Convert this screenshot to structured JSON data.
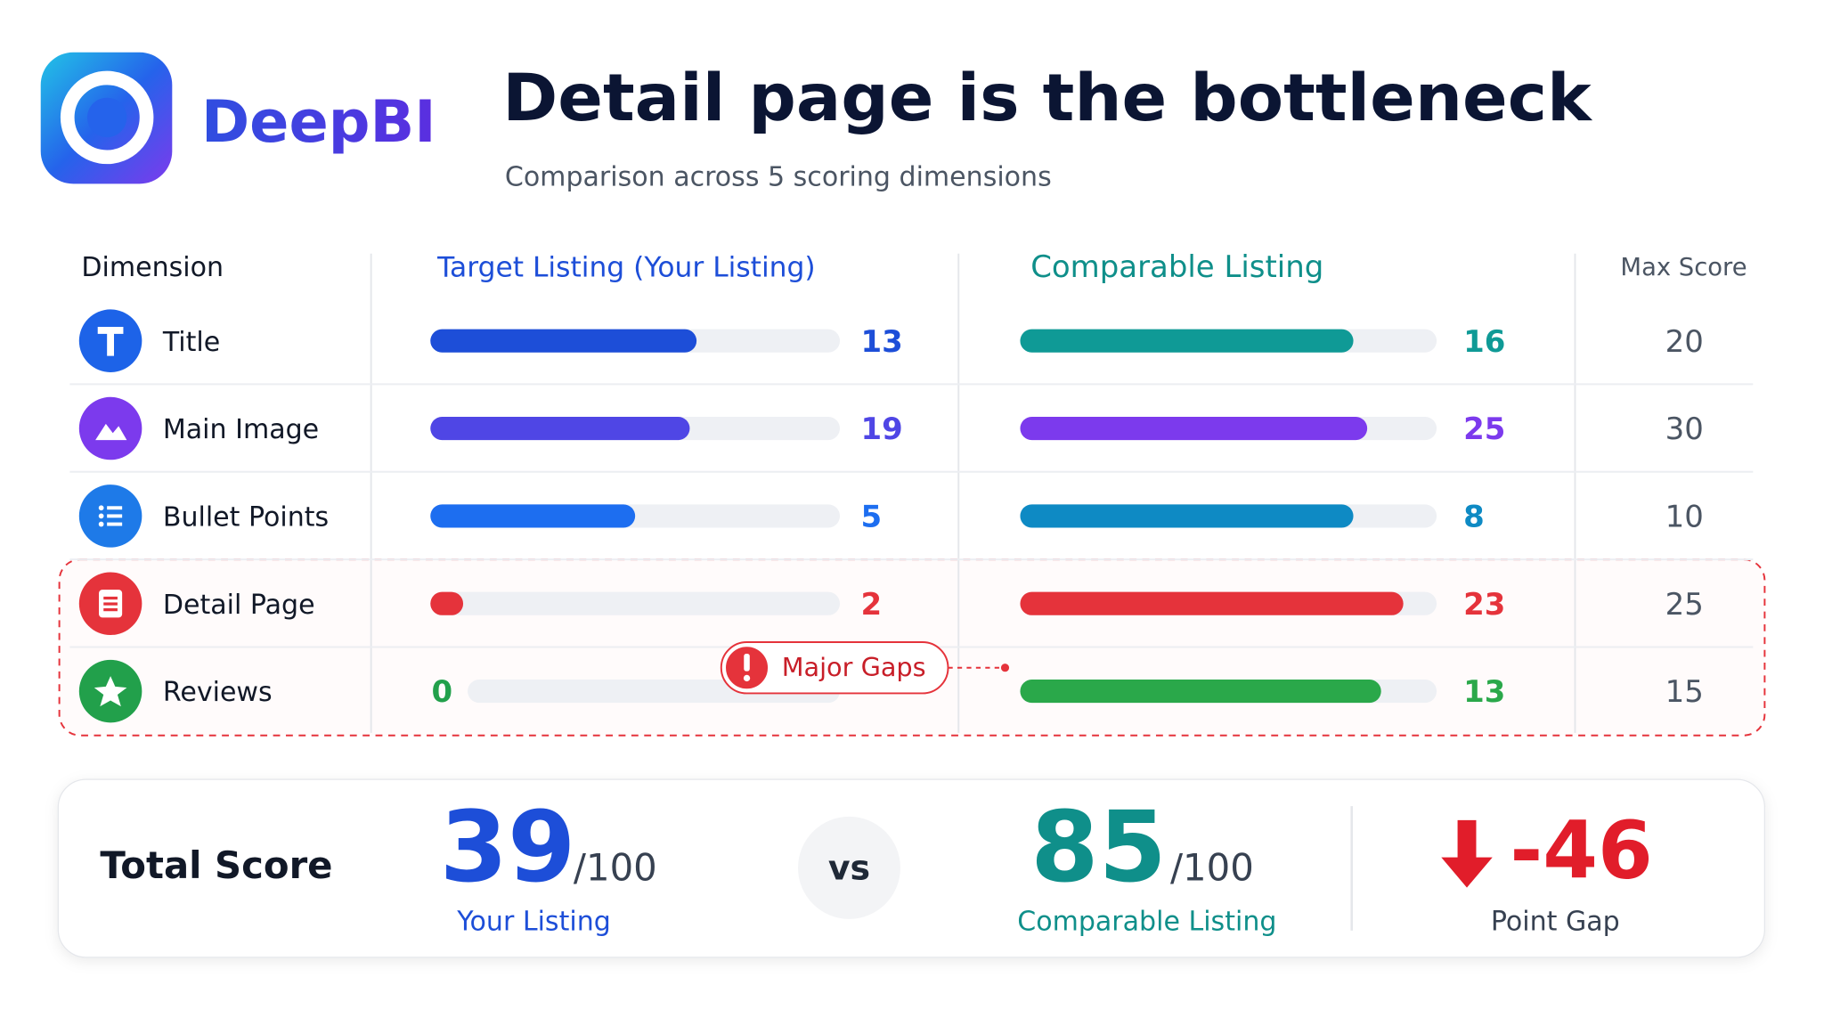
{
  "brand": "DeepBI",
  "header": {
    "title": "Detail page is the bottleneck",
    "subtitle": "Comparison across 5 scoring dimensions"
  },
  "table": {
    "columns": [
      "Dimension",
      "Target Listing (Your Listing)",
      "Comparable Listing",
      "Max Score"
    ],
    "column_colors": [
      "#111827",
      "#1d4ed8",
      "#0f8f8a",
      "#4b5563"
    ],
    "rows": [
      {
        "dimension": "Title",
        "target": 13,
        "comparable": 16,
        "max": 20,
        "icon_color": "#1d63e8",
        "target_color": "#1d4ed8",
        "comparable_color": "#0f9a96",
        "highlight": false
      },
      {
        "dimension": "Main Image",
        "target": 19,
        "comparable": 25,
        "max": 30,
        "icon_color": "#7c3aed",
        "target_color": "#4f46e5",
        "comparable_color": "#7c3aed",
        "highlight": false
      },
      {
        "dimension": "Bullet Points",
        "target": 5,
        "comparable": 8,
        "max": 10,
        "icon_color": "#1e7ae8",
        "target_color": "#1d6ef0",
        "comparable_color": "#0e8ac4",
        "highlight": false
      },
      {
        "dimension": "Detail Page",
        "target": 2,
        "comparable": 23,
        "max": 25,
        "icon_color": "#e5333b",
        "target_color": "#e5333b",
        "comparable_color": "#e5333b",
        "highlight": true
      },
      {
        "dimension": "Reviews",
        "target": 0,
        "comparable": 13,
        "max": 15,
        "icon_color": "#22a04b",
        "target_color": "#22a04b",
        "comparable_color": "#2aa84a",
        "highlight": true
      }
    ]
  },
  "callout": "Major Gaps",
  "total": {
    "label": "Total Score",
    "target": 39,
    "target_denominator": "/100",
    "target_label": "Your Listing",
    "vs": "vs",
    "comparable": 85,
    "comparable_denominator": "/100",
    "comparable_label": "Comparable Listing",
    "gap": -46,
    "gap_label": "Point Gap"
  }
}
